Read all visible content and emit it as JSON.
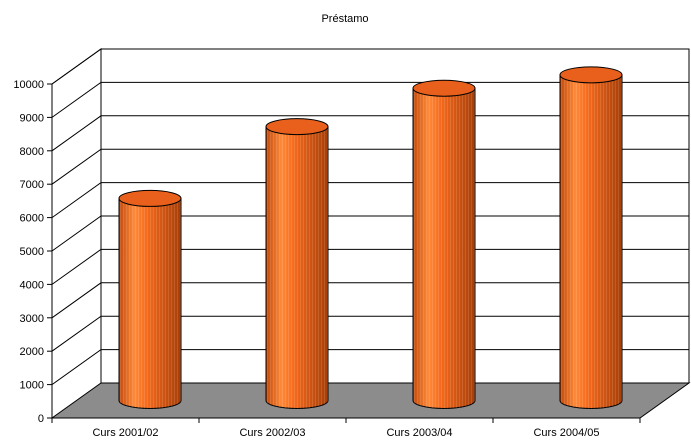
{
  "chart_data": {
    "type": "bar",
    "title": "Préstamo",
    "categories": [
      "Curs 2001/02",
      "Curs 2002/03",
      "Curs 2003/04",
      "Curs 2004/05"
    ],
    "values": [
      6050,
      8200,
      9350,
      9750
    ],
    "ylim": [
      0,
      10000
    ],
    "yticks": [
      0,
      1000,
      2000,
      3000,
      4000,
      5000,
      6000,
      7000,
      8000,
      9000,
      10000
    ],
    "xlabel": "",
    "ylabel": "",
    "grid": true,
    "legend": "none",
    "colors": {
      "bar": "#e8601c",
      "bar_light": "#ff9a4a",
      "bar_dark": "#a63e08",
      "floor": "#8c8c8c",
      "grid": "#000000"
    }
  }
}
